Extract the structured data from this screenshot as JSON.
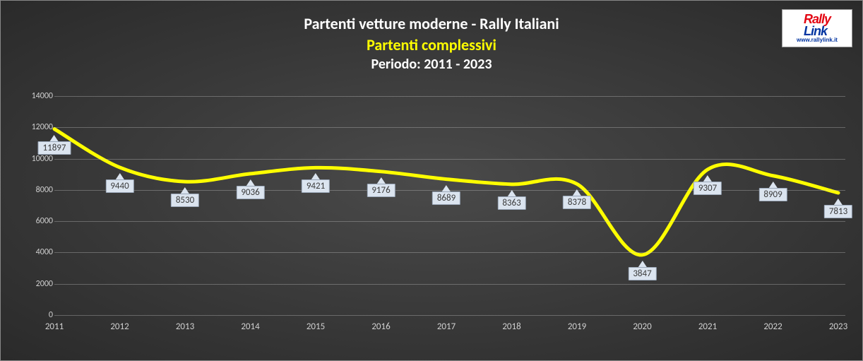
{
  "chart": {
    "type": "line",
    "title_line1": "Partenti vetture moderne - Rally Italiani",
    "title_line2": "Partenti complessivi",
    "title_line3": "Periodo: 2011 - 2023",
    "title_color_main": "#ffffff",
    "title_color_accent": "#ffff00",
    "title_fontsize_main": 22,
    "title_fontsize_sub": 20,
    "background_gradient_inner": "#4a4a4a",
    "background_gradient_outer": "#2a2a2a",
    "grid_color": "rgba(200,200,200,0.35)",
    "axis_label_color": "#d0d0d0",
    "axis_fontsize": 12,
    "line_color": "#ffff00",
    "line_width": 5,
    "callout_bg": "#dbe4ef",
    "callout_border": "#9aa7b8",
    "callout_text_color": "#3b3b3b",
    "callout_fontsize": 13,
    "categories": [
      "2011",
      "2012",
      "2013",
      "2014",
      "2015",
      "2016",
      "2017",
      "2018",
      "2019",
      "2020",
      "2021",
      "2022",
      "2023"
    ],
    "values": [
      11897,
      9440,
      8530,
      9036,
      9421,
      9176,
      8689,
      8363,
      8378,
      3847,
      9307,
      8909,
      7813
    ],
    "ylim": [
      0,
      14000
    ],
    "ytick_step": 2000,
    "yticks": [
      0,
      2000,
      4000,
      6000,
      8000,
      10000,
      12000,
      14000
    ]
  },
  "logo": {
    "text_top1": "Rally",
    "text_top2": "Link",
    "url": "www.rallylink.it",
    "color_red": "#e30613",
    "color_blue": "#0033a0",
    "bg": "#ffffff"
  }
}
